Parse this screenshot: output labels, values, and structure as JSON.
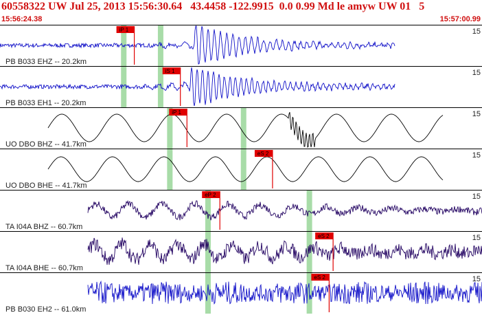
{
  "header": {
    "event_line": "60558322 UW Jul 25, 2013 15:56:30.64   43.4458 -122.9915  0.0 0.99 Md le amyw UW 01   5",
    "time_start": "15:56:24.38",
    "time_end": "15:57:00.99"
  },
  "colors": {
    "header_text": "#d01010",
    "trace_blue": "#1010c8",
    "trace_dark": "#200060",
    "trace_black": "#000000",
    "pick_red": "#e00000",
    "window_green": "#a8dca8"
  },
  "channels": [
    {
      "label": "PB B033 EHZ -- 20.2km",
      "scale": "15",
      "color": "trace_blue",
      "pick": {
        "label": "iP 1",
        "time": 10.2
      },
      "windows": [
        9.4,
        12.2
      ]
    },
    {
      "label": "PB B033 EH1 -- 20.2km",
      "scale": "15",
      "color": "trace_blue",
      "pick": {
        "label": "iS 1",
        "time": 13.7
      },
      "windows": [
        9.4,
        12.2
      ]
    },
    {
      "label": "UO DBO BHZ -- 41.7km",
      "scale": "15",
      "color": "trace_black",
      "pick": {
        "label": "iP 1",
        "time": 14.2
      },
      "windows": [
        12.9,
        18.5
      ]
    },
    {
      "label": "UO DBO BHE -- 41.7km",
      "scale": "15",
      "color": "trace_black",
      "pick": {
        "label": "eS 2",
        "time": 20.7
      },
      "windows": [
        12.9,
        18.5
      ]
    },
    {
      "label": "TA I04A BHZ -- 60.7km",
      "scale": "15",
      "color": "trace_dark",
      "pick": {
        "label": "eP 2",
        "time": 16.7
      },
      "windows": [
        15.8,
        23.5
      ]
    },
    {
      "label": "TA I04A BHE -- 60.7km",
      "scale": "15",
      "color": "trace_dark",
      "pick": {
        "label": "eS 2",
        "time": 25.3
      },
      "windows": [
        15.8,
        23.5
      ]
    },
    {
      "label": "PB B030 EH2 -- 61.0km",
      "scale": "15",
      "color": "trace_blue",
      "pick": {
        "label": "eS 2",
        "time": 25.0
      },
      "windows": [
        15.8,
        23.5
      ]
    }
  ]
}
